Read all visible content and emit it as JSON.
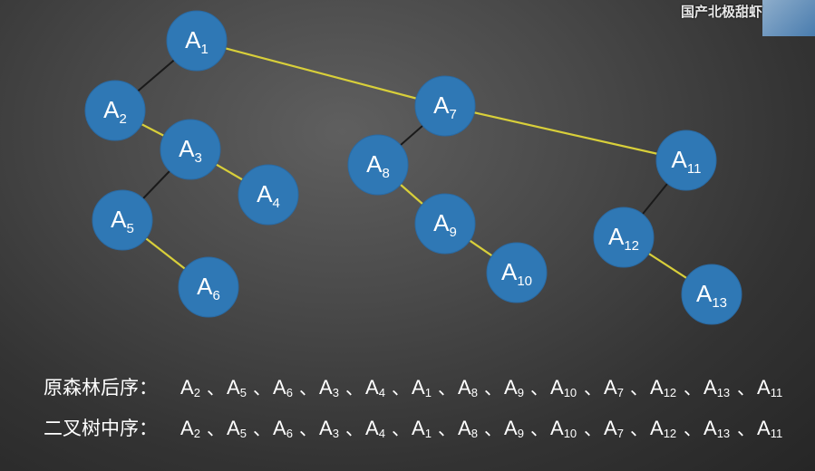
{
  "watermark": "国产北极甜虾",
  "nodes": [
    {
      "id": "A1",
      "base": "A",
      "sub": "1"
    },
    {
      "id": "A2",
      "base": "A",
      "sub": "2"
    },
    {
      "id": "A3",
      "base": "A",
      "sub": "3"
    },
    {
      "id": "A4",
      "base": "A",
      "sub": "4"
    },
    {
      "id": "A5",
      "base": "A",
      "sub": "5"
    },
    {
      "id": "A6",
      "base": "A",
      "sub": "6"
    },
    {
      "id": "A7",
      "base": "A",
      "sub": "7"
    },
    {
      "id": "A8",
      "base": "A",
      "sub": "8"
    },
    {
      "id": "A9",
      "base": "A",
      "sub": "9"
    },
    {
      "id": "A10",
      "base": "A",
      "sub": "10"
    },
    {
      "id": "A11",
      "base": "A",
      "sub": "11"
    },
    {
      "id": "A12",
      "base": "A",
      "sub": "12"
    },
    {
      "id": "A13",
      "base": "A",
      "sub": "13"
    }
  ],
  "edges_first_child": [
    [
      "A1",
      "A2"
    ],
    [
      "A3",
      "A5"
    ],
    [
      "A7",
      "A8"
    ],
    [
      "A11",
      "A12"
    ]
  ],
  "edges_sibling": [
    [
      "A1",
      "A7"
    ],
    [
      "A7",
      "A11"
    ],
    [
      "A2",
      "A3"
    ],
    [
      "A3",
      "A4"
    ],
    [
      "A5",
      "A6"
    ],
    [
      "A8",
      "A9"
    ],
    [
      "A9",
      "A10"
    ],
    [
      "A12",
      "A13"
    ]
  ],
  "sequences": [
    {
      "label": "原森林后序：",
      "items": [
        "A2",
        "A5",
        "A6",
        "A3",
        "A4",
        "A1",
        "A8",
        "A9",
        "A10",
        "A7",
        "A12",
        "A13",
        "A11"
      ]
    },
    {
      "label": "二叉树中序：",
      "items": [
        "A2",
        "A5",
        "A6",
        "A3",
        "A4",
        "A1",
        "A8",
        "A9",
        "A10",
        "A7",
        "A12",
        "A13",
        "A11"
      ]
    }
  ],
  "separator": "、",
  "colors": {
    "node": "#2f78b5",
    "sibling_edge": "#d8cf3a",
    "child_edge": "#1a1a1a"
  }
}
